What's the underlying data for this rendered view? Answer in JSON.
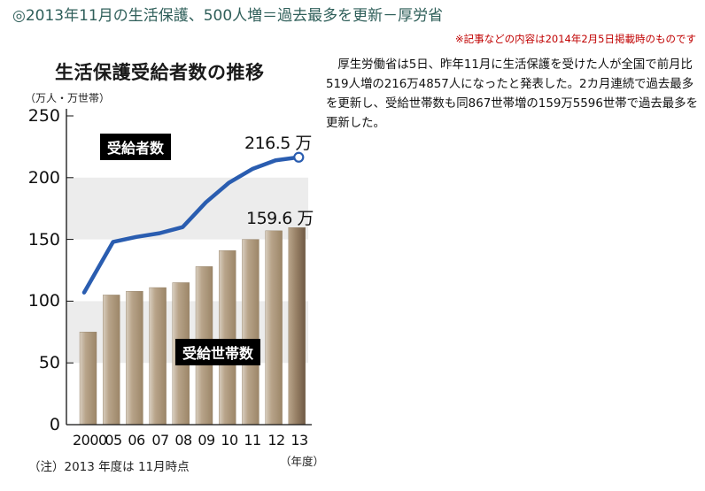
{
  "article": {
    "headline": "◎2013年11月の生活保護、500人増＝過去最多を更新－厚労省",
    "notice": "※記事などの内容は2014年2月5日掲載時のものです",
    "body": "厚生労働省は5日、昨年11月に生活保護を受けた人が全国で前月比519人増の216万4857人になったと発表した。2カ月連続で過去最多を更新し、受給世帯数も同867世帯増の159万5596世帯で過去最多を更新した。"
  },
  "colors": {
    "headline": "#2f5f5a",
    "notice": "#c00000",
    "line": "#2a5db0",
    "bar": "#b09c80",
    "bar_last": "#8a7560",
    "band": "#ececec"
  },
  "chart_data": {
    "type": "bar+line",
    "title": "生活保護受給者数の推移",
    "ylabel": "（万人・万世帯）",
    "xlabel": "（年度）",
    "ylim": [
      0,
      250
    ],
    "yticks": [
      "0",
      "50",
      "100",
      "150",
      "200",
      "250"
    ],
    "categories": [
      "2000",
      "05",
      "06",
      "07",
      "08",
      "09",
      "10",
      "11",
      "12",
      "13"
    ],
    "series": [
      {
        "name": "受給者数",
        "type": "line",
        "values": [
          107,
          148,
          152,
          155,
          160,
          180,
          196,
          207,
          214,
          216.5
        ],
        "end_label": "216.5 万"
      },
      {
        "name": "受給世帯数",
        "type": "bar",
        "values": [
          75,
          105,
          108,
          111,
          115,
          128,
          141,
          150,
          157,
          159.6
        ],
        "end_label": "159.6 万"
      }
    ],
    "annotation": "（注）2013 年度は 11月時点",
    "grid": "alternating bands 100-150 white, 150-200 gray, 50-100 gray"
  }
}
